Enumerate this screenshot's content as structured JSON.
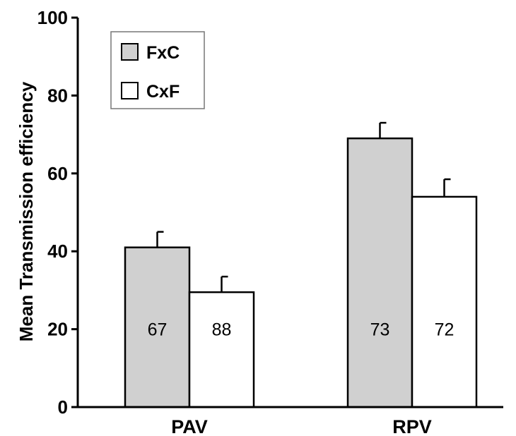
{
  "chart_data": {
    "type": "bar",
    "categories": [
      "PAV",
      "RPV"
    ],
    "series": [
      {
        "name": "FxC",
        "values": [
          41,
          69
        ],
        "errors": [
          4,
          4
        ],
        "labels": [
          "67",
          "73"
        ],
        "color": "#d0d0d0"
      },
      {
        "name": "CxF",
        "values": [
          29.5,
          54
        ],
        "errors": [
          4,
          4.5
        ],
        "labels": [
          "88",
          "72"
        ],
        "color": "#ffffff"
      }
    ],
    "ylabel": "Mean Transmission efficiency",
    "ylim": [
      0,
      100
    ],
    "yticks": [
      0,
      20,
      40,
      60,
      80,
      100
    ],
    "grid": false,
    "legend": "top-left"
  }
}
